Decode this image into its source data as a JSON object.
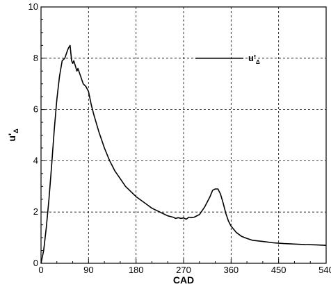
{
  "chart_data": {
    "type": "line",
    "xlabel": "CAD",
    "ylabel": "u'",
    "ylabel_sub": "Δ",
    "xlim": [
      0,
      540
    ],
    "ylim": [
      0,
      10
    ],
    "xticks": [
      0,
      90,
      180,
      270,
      360,
      450,
      540
    ],
    "yticks": [
      0,
      2,
      4,
      6,
      8,
      10
    ],
    "grid": true,
    "legend_position": "top-right",
    "series": [
      {
        "name": "u'",
        "name_sub": "Δ",
        "color": "#000000",
        "x": [
          0,
          5,
          10,
          15,
          20,
          25,
          30,
          35,
          40,
          45,
          50,
          52,
          55,
          58,
          60,
          62,
          65,
          68,
          70,
          75,
          80,
          85,
          90,
          95,
          100,
          110,
          120,
          130,
          140,
          150,
          160,
          170,
          180,
          190,
          200,
          210,
          220,
          230,
          240,
          250,
          255,
          260,
          265,
          270,
          275,
          280,
          285,
          290,
          300,
          310,
          320,
          325,
          330,
          335,
          340,
          345,
          350,
          355,
          360,
          370,
          380,
          390,
          400,
          420,
          440,
          460,
          480,
          500,
          520,
          540
        ],
        "y": [
          0,
          0.5,
          1.4,
          2.5,
          3.8,
          5.2,
          6.4,
          7.3,
          7.9,
          8.0,
          8.3,
          8.4,
          8.5,
          7.9,
          7.8,
          7.9,
          7.7,
          7.5,
          7.6,
          7.3,
          7.0,
          6.9,
          6.7,
          6.2,
          5.8,
          5.1,
          4.5,
          4.0,
          3.6,
          3.3,
          3.0,
          2.8,
          2.6,
          2.45,
          2.3,
          2.15,
          2.05,
          1.95,
          1.85,
          1.8,
          1.75,
          1.78,
          1.75,
          1.77,
          1.72,
          1.8,
          1.78,
          1.8,
          1.9,
          2.2,
          2.6,
          2.85,
          2.9,
          2.9,
          2.7,
          2.35,
          1.95,
          1.65,
          1.45,
          1.2,
          1.05,
          0.97,
          0.9,
          0.85,
          0.8,
          0.77,
          0.75,
          0.73,
          0.72,
          0.7
        ]
      }
    ]
  }
}
